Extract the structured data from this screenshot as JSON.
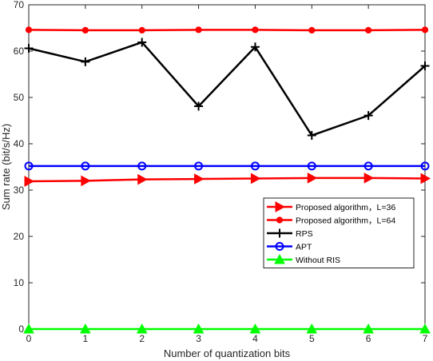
{
  "chart_data": {
    "type": "line",
    "title": "",
    "xlabel": "Number of quantization bits",
    "ylabel": "Sum rate (bit/s/Hz)",
    "x": [
      0,
      1,
      2,
      3,
      4,
      5,
      6,
      7
    ],
    "xlim": [
      0,
      7
    ],
    "ylim": [
      0,
      70
    ],
    "xticks": [
      0,
      1,
      2,
      3,
      4,
      5,
      6,
      7
    ],
    "yticks": [
      0,
      10,
      20,
      30,
      40,
      50,
      60,
      70
    ],
    "grid": false,
    "legend_position": "center-right",
    "series": [
      {
        "name": "Proposed algorithm，L=36",
        "color": "#ff0000",
        "marker": "triangle-right",
        "values": [
          31.9,
          32.0,
          32.3,
          32.4,
          32.5,
          32.6,
          32.6,
          32.5
        ]
      },
      {
        "name": "Proposed algorithm，L=64",
        "color": "#ff0000",
        "marker": "circle-filled",
        "values": [
          64.6,
          64.5,
          64.5,
          64.6,
          64.6,
          64.5,
          64.5,
          64.6
        ]
      },
      {
        "name": "RPS",
        "color": "#000000",
        "marker": "plus",
        "values": [
          60.6,
          57.7,
          61.9,
          48.1,
          60.9,
          41.8,
          46.1,
          56.8
        ]
      },
      {
        "name": "APT",
        "color": "#0000ff",
        "marker": "circle-open",
        "values": [
          35.2,
          35.2,
          35.2,
          35.2,
          35.2,
          35.2,
          35.2,
          35.2
        ]
      },
      {
        "name": "Without RIS",
        "color": "#00ff00",
        "marker": "triangle-up",
        "values": [
          0,
          0,
          0,
          0,
          0,
          0,
          0,
          0
        ]
      }
    ]
  }
}
